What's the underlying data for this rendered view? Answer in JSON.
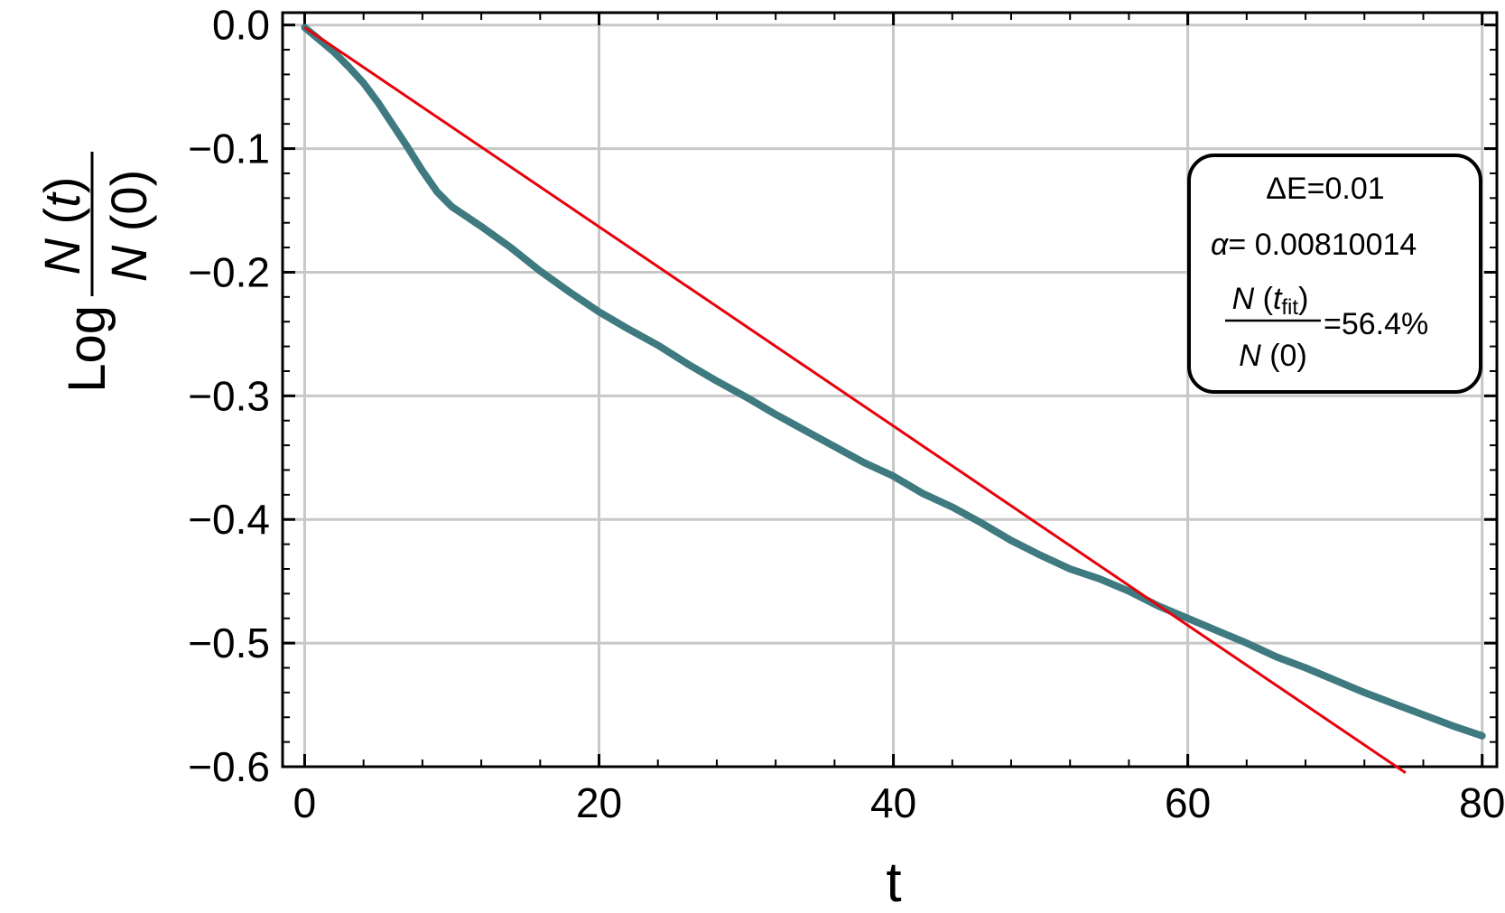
{
  "chart_data": {
    "type": "line",
    "xlabel": "t",
    "ylabel": {
      "prefix": "Log",
      "numerator_func": "N",
      "numerator_arg": "t",
      "denominator_func": "N",
      "denominator_arg": "0"
    },
    "xlim": [
      -1.5,
      81
    ],
    "ylim": [
      -0.6,
      0.01
    ],
    "x_ticks": [
      0,
      20,
      40,
      60,
      80
    ],
    "x_tick_labels": [
      "0",
      "20",
      "40",
      "60",
      "80"
    ],
    "y_ticks": [
      0,
      -0.1,
      -0.2,
      -0.3,
      -0.4,
      -0.5,
      -0.6
    ],
    "y_tick_labels": [
      "0.0",
      "−0.1",
      "−0.2",
      "−0.3",
      "−0.4",
      "−0.5",
      "−0.6"
    ],
    "grid": true,
    "series": [
      {
        "style": "data",
        "color": "#3e7a80",
        "x": [
          0,
          1,
          2,
          3,
          4,
          5,
          6,
          7,
          8,
          9,
          10,
          12,
          14,
          16,
          18,
          20,
          22,
          24,
          26,
          28,
          30,
          32,
          34,
          36,
          38,
          40,
          42,
          44,
          46,
          48,
          50,
          52,
          54,
          56,
          58,
          60,
          62,
          64,
          66,
          68,
          70,
          72,
          74,
          76,
          78,
          80
        ],
        "y": [
          -0.002,
          -0.012,
          -0.022,
          -0.034,
          -0.047,
          -0.063,
          -0.081,
          -0.099,
          -0.118,
          -0.135,
          -0.147,
          -0.163,
          -0.18,
          -0.199,
          -0.216,
          -0.232,
          -0.246,
          -0.259,
          -0.274,
          -0.288,
          -0.301,
          -0.315,
          -0.328,
          -0.341,
          -0.354,
          -0.365,
          -0.379,
          -0.39,
          -0.403,
          -0.417,
          -0.429,
          -0.44,
          -0.448,
          -0.458,
          -0.47,
          -0.48,
          -0.49,
          -0.5,
          -0.511,
          -0.52,
          -0.53,
          -0.54,
          -0.549,
          -0.558,
          -0.567,
          -0.575
        ]
      },
      {
        "style": "fit",
        "color": "#e8000b",
        "x": [
          0,
          74.8
        ],
        "y": [
          -0.002,
          -0.605
        ]
      }
    ],
    "legend": {
      "position": "top-right",
      "delta_e": "ΔE=0.01",
      "alpha_symbol": "α",
      "alpha_value": "= 0.00810014",
      "ratio_num_func": "N",
      "ratio_num_t": "t",
      "ratio_num_sub": "fit",
      "ratio_den_func": "N",
      "ratio_den_arg": "(0)",
      "ratio_value": "=56.4%"
    }
  }
}
